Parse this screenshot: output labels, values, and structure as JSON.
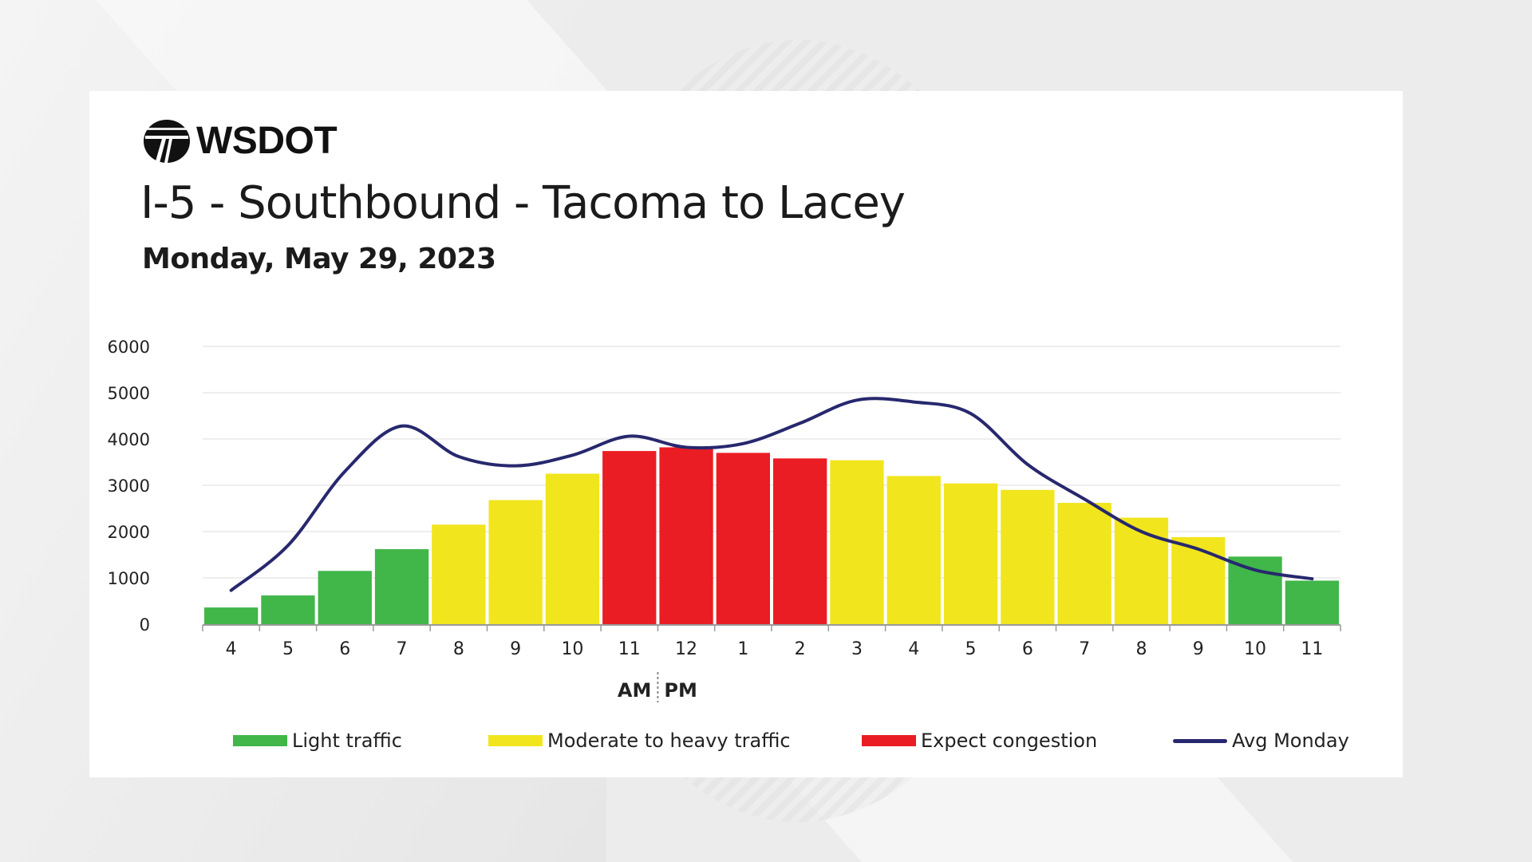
{
  "brand": {
    "logo_text": "WSDOT"
  },
  "header": {
    "title": "I-5 - Southbound - Tacoma to Lacey",
    "subtitle": "Monday, May 29, 2023"
  },
  "colors": {
    "light": "#41b649",
    "moderate": "#f1e51d",
    "congestion": "#ea1d24",
    "avg_line": "#27286e",
    "grid": "#e8e8e8",
    "axis_text": "#222222"
  },
  "chart_data": {
    "type": "bar",
    "categories": [
      "4",
      "5",
      "6",
      "7",
      "8",
      "9",
      "10",
      "11",
      "12",
      "1",
      "2",
      "3",
      "4",
      "5",
      "6",
      "7",
      "8",
      "9",
      "10",
      "11"
    ],
    "values": [
      360,
      620,
      1150,
      1620,
      2150,
      2680,
      3250,
      3740,
      3820,
      3700,
      3580,
      3540,
      3200,
      3040,
      2900,
      2620,
      2300,
      1880,
      1460,
      940
    ],
    "levels": [
      "light",
      "light",
      "light",
      "light",
      "moderate",
      "moderate",
      "moderate",
      "congestion",
      "congestion",
      "congestion",
      "congestion",
      "moderate",
      "moderate",
      "moderate",
      "moderate",
      "moderate",
      "moderate",
      "moderate",
      "light",
      "light"
    ],
    "series": [
      {
        "name": "Avg Monday",
        "type": "line",
        "values": [
          730,
          1700,
          3300,
          4280,
          3620,
          3420,
          3650,
          4060,
          3820,
          3900,
          4340,
          4840,
          4800,
          4550,
          3450,
          2700,
          2000,
          1620,
          1170,
          980
        ]
      }
    ],
    "ylim": [
      0,
      6000
    ],
    "yticks": [
      "0",
      "1000",
      "2000",
      "3000",
      "4000",
      "5000",
      "6000"
    ],
    "am_label": "AM",
    "pm_label": "PM",
    "legend": [
      {
        "key": "light",
        "label": "Light traffic"
      },
      {
        "key": "moderate",
        "label": "Moderate to heavy traffic"
      },
      {
        "key": "congestion",
        "label": "Expect congestion"
      },
      {
        "key": "avg",
        "label": "Avg Monday"
      }
    ]
  }
}
